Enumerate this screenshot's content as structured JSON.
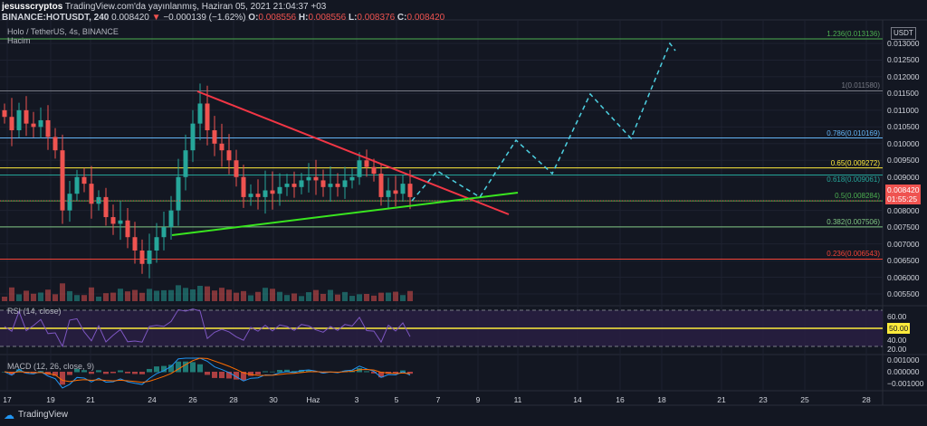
{
  "header": {
    "author": "jesusscryptos",
    "published": "TradingView.com'da yayınlanmış, Haziran 05, 2021 21:04:37 +03",
    "symbol": "BINANCE:HOTUSDT, 240",
    "last": "0.008420",
    "change": "−0.000139 (−1.62%)",
    "o_label": "O:",
    "o": "0.008556",
    "h_label": "H:",
    "h": "0.008556",
    "l_label": "L:",
    "l": "0.008376",
    "c_label": "C:",
    "c": "0.008420"
  },
  "pane": {
    "title": "Holo / TetherUS, 4s, BINANCE",
    "volume_label": "Hacim",
    "rsi_label": "RSI (14, close)",
    "macd_label": "MACD (12, 26, close, 9)"
  },
  "axis": {
    "currency": "USDT",
    "price_ticks": [
      "0.013000",
      "0.012500",
      "0.012000",
      "0.011500",
      "0.011000",
      "0.010500",
      "0.010000",
      "0.009500",
      "0.009000",
      "0.008000",
      "0.007500",
      "0.007000",
      "0.006500",
      "0.006000",
      "0.005500"
    ],
    "price_values": [
      0.013,
      0.0125,
      0.012,
      0.0115,
      0.011,
      0.0105,
      0.01,
      0.0095,
      0.009,
      0.008,
      0.0075,
      0.007,
      0.0065,
      0.006,
      0.0055
    ],
    "last_price": "0.008420",
    "countdown": "01:55:25",
    "rsi_ticks": [
      "60.00",
      "40.00",
      "20.00"
    ],
    "rsi_mid": "50.00",
    "macd_ticks": [
      "0.001000",
      "0.000000",
      "−0.001000"
    ],
    "time_ticks": [
      "17",
      "19",
      "21",
      "24",
      "26",
      "28",
      "30",
      "Haz",
      "3",
      "5",
      "7",
      "9",
      "11",
      "14",
      "16",
      "18",
      "21",
      "23",
      "25",
      "28"
    ]
  },
  "fib_levels": [
    {
      "label": "1.236(0.013136)",
      "price": 0.013136,
      "color": "#4caf50"
    },
    {
      "label": "1(0.011580)",
      "price": 0.01158,
      "color": "#787b86"
    },
    {
      "label": "0.786(0.010169)",
      "price": 0.010169,
      "color": "#64b5f6"
    },
    {
      "label": "0.65(0.009272)",
      "price": 0.009272,
      "color": "#ffeb3b"
    },
    {
      "label": "0.618(0.009061)",
      "price": 0.009061,
      "color": "#26a69a"
    },
    {
      "label": "0.5(0.008284)",
      "price": 0.008284,
      "color": "#4caf50"
    },
    {
      "label": "0.382(0.007506)",
      "price": 0.007506,
      "color": "#81c784"
    },
    {
      "label": "0.236(0.006543)",
      "price": 0.006543,
      "color": "#f44336"
    }
  ],
  "colors": {
    "up": "#26a69a",
    "down": "#ef5350",
    "rsi": "#7e57c2",
    "macd": "#2196f3",
    "signal": "#ff6d00"
  },
  "chart_data": {
    "type": "candlestick",
    "closes": [
      0.0108,
      0.0104,
      0.011,
      0.0106,
      0.0105,
      0.0107,
      0.0102,
      0.0098,
      0.008,
      0.0085,
      0.009,
      0.0088,
      0.0082,
      0.0084,
      0.0078,
      0.0076,
      0.0077,
      0.0072,
      0.0068,
      0.0064,
      0.0068,
      0.0072,
      0.0075,
      0.008,
      0.009,
      0.0098,
      0.0106,
      0.0112,
      0.0104,
      0.01,
      0.0098,
      0.0095,
      0.009,
      0.0084,
      0.0085,
      0.0084,
      0.0086,
      0.0085,
      0.0087,
      0.0088,
      0.0087,
      0.0089,
      0.009,
      0.0089,
      0.0087,
      0.0088,
      0.0087,
      0.0089,
      0.009,
      0.0095,
      0.0093,
      0.0091,
      0.0084,
      0.0086,
      0.0085,
      0.0088,
      0.0084
    ]
  },
  "footer": {
    "brand": "TradingView"
  }
}
